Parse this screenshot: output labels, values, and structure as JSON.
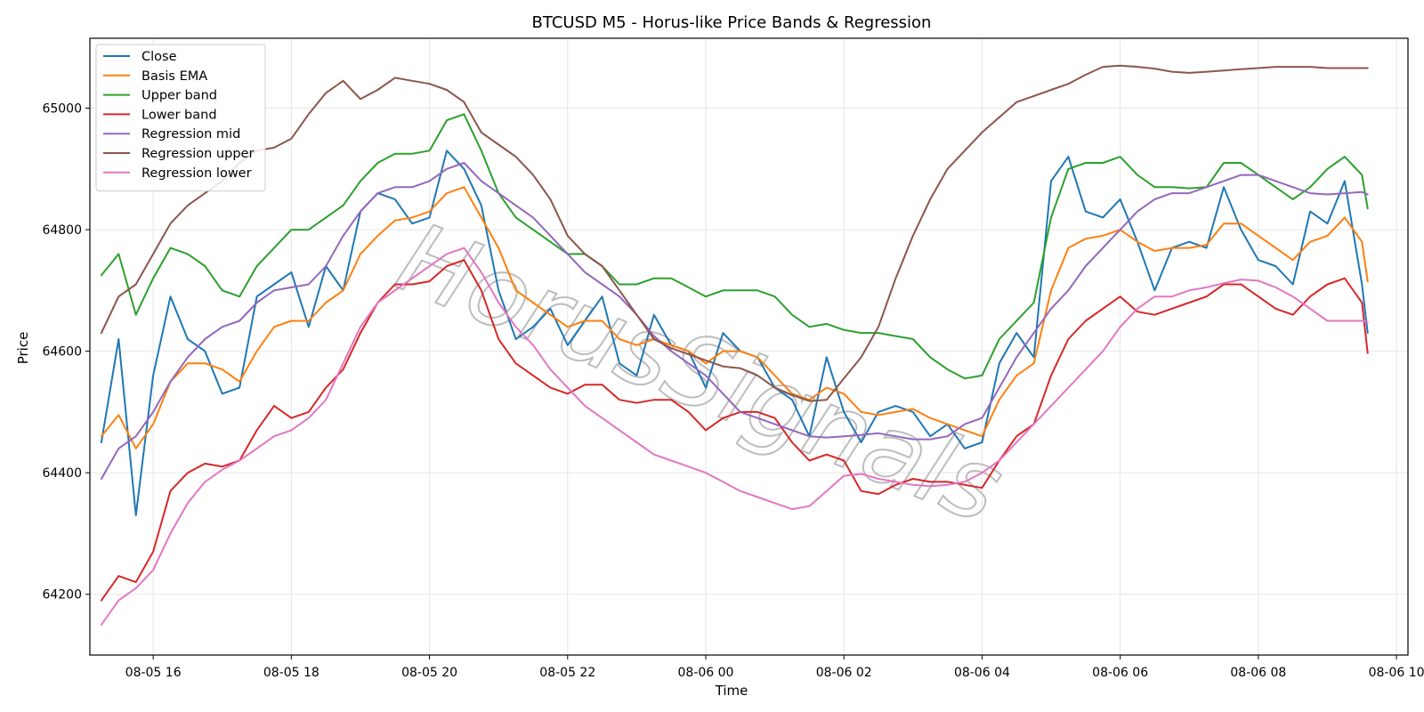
{
  "chart_data": {
    "type": "line",
    "title": "BTCUSD M5 - Horus-like Price Bands & Regression",
    "xlabel": "Time",
    "ylabel": "Price",
    "x_range": [
      "08-05 15:05",
      "08-06 10:10"
    ],
    "ylim": [
      64100,
      65115
    ],
    "xticks": [
      "08-05 16",
      "08-05 18",
      "08-05 20",
      "08-05 22",
      "08-06 00",
      "08-06 02",
      "08-06 04",
      "08-06 06",
      "08-06 08",
      "08-06 10"
    ],
    "yticks": [
      64200,
      64400,
      64600,
      64800,
      65000
    ],
    "grid": true,
    "legend_position": "upper-left",
    "watermark": "HorusSignals",
    "x": [
      "08-05 15:15",
      "08-05 15:30",
      "08-05 15:45",
      "08-05 16:00",
      "08-05 16:15",
      "08-05 16:30",
      "08-05 16:45",
      "08-05 17:00",
      "08-05 17:15",
      "08-05 17:30",
      "08-05 17:45",
      "08-05 18:00",
      "08-05 18:15",
      "08-05 18:30",
      "08-05 18:45",
      "08-05 19:00",
      "08-05 19:15",
      "08-05 19:30",
      "08-05 19:45",
      "08-05 20:00",
      "08-05 20:15",
      "08-05 20:30",
      "08-05 20:45",
      "08-05 21:00",
      "08-05 21:15",
      "08-05 21:30",
      "08-05 21:45",
      "08-05 22:00",
      "08-05 22:15",
      "08-05 22:30",
      "08-05 22:45",
      "08-05 23:00",
      "08-05 23:15",
      "08-05 23:30",
      "08-05 23:45",
      "08-06 00:00",
      "08-06 00:15",
      "08-06 00:30",
      "08-06 00:45",
      "08-06 01:00",
      "08-06 01:15",
      "08-06 01:30",
      "08-06 01:45",
      "08-06 02:00",
      "08-06 02:15",
      "08-06 02:30",
      "08-06 02:45",
      "08-06 03:00",
      "08-06 03:15",
      "08-06 03:30",
      "08-06 03:45",
      "08-06 04:00",
      "08-06 04:15",
      "08-06 04:30",
      "08-06 04:45",
      "08-06 05:00",
      "08-06 05:15",
      "08-06 05:30",
      "08-06 05:45",
      "08-06 06:00",
      "08-06 06:15",
      "08-06 06:30",
      "08-06 06:45",
      "08-06 07:00",
      "08-06 07:15",
      "08-06 07:30",
      "08-06 07:45",
      "08-06 08:00",
      "08-06 08:15",
      "08-06 08:30",
      "08-06 08:45",
      "08-06 09:00",
      "08-06 09:15",
      "08-06 09:30",
      "08-06 09:35"
    ],
    "series": [
      {
        "name": "Close",
        "color": "#1f77b4",
        "values": [
          64450,
          64620,
          64330,
          64560,
          64690,
          64620,
          64600,
          64530,
          64540,
          64690,
          64710,
          64730,
          64640,
          64740,
          64700,
          64830,
          64860,
          64850,
          64810,
          64820,
          64930,
          64900,
          64840,
          64700,
          64620,
          64640,
          64670,
          64610,
          64650,
          64690,
          64580,
          64560,
          64660,
          64610,
          64600,
          64540,
          64630,
          64600,
          64590,
          64540,
          64520,
          64460,
          64590,
          64500,
          64450,
          64500,
          64510,
          64500,
          64460,
          64480,
          64440,
          64450,
          64580,
          64630,
          64590,
          64880,
          64920,
          64830,
          64820,
          64850,
          64780,
          64700,
          64770,
          64780,
          64770,
          64870,
          64800,
          64750,
          64740,
          64710,
          64830,
          64810,
          64880,
          64710,
          64630
        ]
      },
      {
        "name": "Basis EMA",
        "color": "#ff7f0e",
        "values": [
          64460,
          64495,
          64440,
          64480,
          64550,
          64580,
          64580,
          64570,
          64550,
          64600,
          64640,
          64650,
          64650,
          64680,
          64700,
          64760,
          64790,
          64815,
          64820,
          64830,
          64860,
          64870,
          64820,
          64770,
          64700,
          64680,
          64660,
          64640,
          64650,
          64650,
          64620,
          64610,
          64620,
          64610,
          64600,
          64580,
          64600,
          64600,
          64590,
          64560,
          64530,
          64520,
          64540,
          64530,
          64500,
          64495,
          64500,
          64505,
          64490,
          64480,
          64470,
          64460,
          64520,
          64560,
          64580,
          64700,
          64770,
          64785,
          64790,
          64800,
          64780,
          64765,
          64770,
          64770,
          64775,
          64810,
          64810,
          64790,
          64770,
          64750,
          64780,
          64790,
          64820,
          64780,
          64715
        ]
      },
      {
        "name": "Upper band",
        "color": "#2ca02c",
        "values": [
          64725,
          64760,
          64660,
          64720,
          64770,
          64760,
          64740,
          64700,
          64690,
          64740,
          64770,
          64800,
          64800,
          64820,
          64840,
          64880,
          64910,
          64925,
          64925,
          64930,
          64980,
          64990,
          64930,
          64860,
          64820,
          64800,
          64780,
          64760,
          64760,
          64740,
          64710,
          64710,
          64720,
          64720,
          64705,
          64690,
          64700,
          64700,
          64700,
          64690,
          64660,
          64640,
          64645,
          64635,
          64630,
          64630,
          64625,
          64620,
          64590,
          64570,
          64555,
          64560,
          64620,
          64650,
          64680,
          64820,
          64900,
          64910,
          64910,
          64920,
          64890,
          64870,
          64870,
          64868,
          64870,
          64910,
          64910,
          64890,
          64870,
          64850,
          64870,
          64900,
          64920,
          64890,
          64835
        ]
      },
      {
        "name": "Lower band",
        "color": "#d62728",
        "values": [
          64190,
          64230,
          64220,
          64270,
          64370,
          64400,
          64415,
          64410,
          64420,
          64470,
          64510,
          64490,
          64500,
          64540,
          64570,
          64630,
          64680,
          64710,
          64710,
          64715,
          64740,
          64750,
          64700,
          64620,
          64580,
          64560,
          64540,
          64530,
          64545,
          64545,
          64520,
          64515,
          64520,
          64520,
          64500,
          64470,
          64490,
          64500,
          64500,
          64490,
          64450,
          64420,
          64430,
          64420,
          64370,
          64365,
          64380,
          64390,
          64385,
          64385,
          64380,
          64375,
          64420,
          64460,
          64480,
          64560,
          64620,
          64650,
          64670,
          64690,
          64665,
          64660,
          64670,
          64680,
          64690,
          64710,
          64710,
          64690,
          64670,
          64660,
          64690,
          64710,
          64720,
          64680,
          64597
        ]
      },
      {
        "name": "Regression mid",
        "color": "#9467bd",
        "values": [
          64390,
          64440,
          64460,
          64500,
          64550,
          64590,
          64620,
          64640,
          64650,
          64680,
          64700,
          64705,
          64710,
          64740,
          64790,
          64830,
          64860,
          64870,
          64870,
          64880,
          64900,
          64910,
          64880,
          64860,
          64840,
          64820,
          64790,
          64760,
          64730,
          64710,
          64690,
          64660,
          64625,
          64600,
          64580,
          64560,
          64530,
          64500,
          64490,
          64480,
          64470,
          64460,
          64458,
          64460,
          64462,
          64465,
          64460,
          64455,
          64455,
          64460,
          64480,
          64490,
          64540,
          64590,
          64630,
          64670,
          64700,
          64740,
          64770,
          64800,
          64830,
          64850,
          64860,
          64860,
          64870,
          64880,
          64890,
          64890,
          64880,
          64870,
          64860,
          64858,
          64860,
          64862,
          64858
        ]
      },
      {
        "name": "Regression upper",
        "color": "#8c564b",
        "values": [
          64630,
          64690,
          64710,
          64760,
          64810,
          64840,
          64860,
          64880,
          64910,
          64930,
          64935,
          64950,
          64990,
          65025,
          65045,
          65015,
          65030,
          65050,
          65045,
          65040,
          65030,
          65010,
          64960,
          64940,
          64920,
          64890,
          64850,
          64790,
          64760,
          64740,
          64700,
          64660,
          64620,
          64605,
          64595,
          64585,
          64575,
          64572,
          64560,
          64540,
          64528,
          64518,
          64520,
          64555,
          64590,
          64640,
          64720,
          64790,
          64850,
          64900,
          64930,
          64960,
          64985,
          65010,
          65020,
          65030,
          65040,
          65055,
          65068,
          65070,
          65068,
          65065,
          65060,
          65058,
          65060,
          65062,
          65064,
          65066,
          65068,
          65068,
          65068,
          65066,
          65066,
          65066,
          65066
        ]
      },
      {
        "name": "Regression lower",
        "color": "#e377c2",
        "values": [
          64150,
          64190,
          64210,
          64240,
          64300,
          64350,
          64385,
          64405,
          64420,
          64440,
          64460,
          64470,
          64490,
          64520,
          64580,
          64640,
          64680,
          64700,
          64720,
          64740,
          64760,
          64770,
          64730,
          64680,
          64640,
          64610,
          64570,
          64540,
          64510,
          64490,
          64470,
          64450,
          64430,
          64420,
          64410,
          64400,
          64385,
          64370,
          64360,
          64350,
          64340,
          64345,
          64370,
          64395,
          64398,
          64390,
          64385,
          64380,
          64378,
          64380,
          64385,
          64400,
          64420,
          64450,
          64480,
          64510,
          64540,
          64570,
          64600,
          64640,
          64670,
          64690,
          64690,
          64700,
          64705,
          64712,
          64718,
          64716,
          64705,
          64690,
          64670,
          64650,
          64650,
          64650,
          64648
        ]
      }
    ]
  }
}
